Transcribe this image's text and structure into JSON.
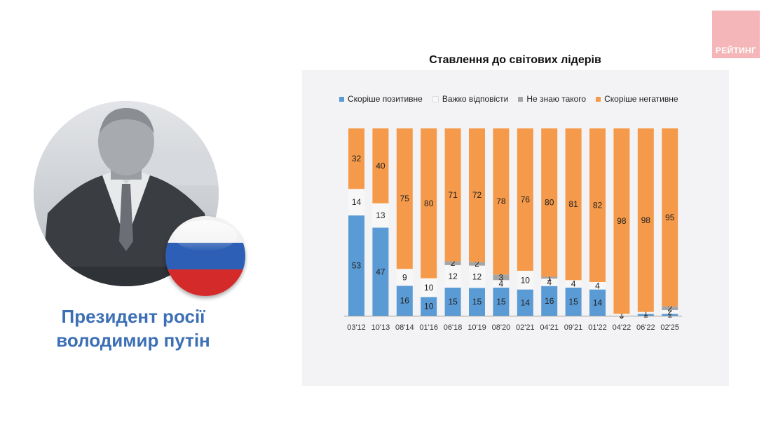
{
  "logo": {
    "text": "РЕЙТИНГ"
  },
  "person": {
    "line1": "Президент росії",
    "line2": "володимир путін"
  },
  "chart_data": {
    "type": "bar",
    "stacked": true,
    "normalized": true,
    "title": "Ставлення до світових лідерів",
    "xlabel": "",
    "ylabel": "",
    "legend_position": "top",
    "grid": false,
    "categories": [
      "03'12",
      "10'13",
      "08'14",
      "01'16",
      "06'18",
      "10'19",
      "08'20",
      "02'21",
      "04'21",
      "09'21",
      "01'22",
      "04'22",
      "06'22",
      "02'25"
    ],
    "series": [
      {
        "name": "Скоріше позитивне",
        "color": "#5b9bd5",
        "values": [
          53,
          47,
          16,
          10,
          15,
          15,
          15,
          14,
          16,
          15,
          14,
          0,
          1,
          1
        ],
        "labels": [
          "53",
          "47",
          "16",
          "10",
          "15",
          "15",
          "15",
          "14",
          "16",
          "15",
          "14",
          "0",
          "1",
          "1"
        ]
      },
      {
        "name": "Важко відповісти",
        "color": "#f7f7f7",
        "values": [
          14,
          13,
          9,
          10,
          12,
          12,
          4,
          10,
          4,
          4,
          4,
          1,
          1,
          2
        ],
        "labels": [
          "14",
          "13",
          "9",
          "10",
          "12",
          "12",
          "4",
          "10",
          "4",
          "4",
          "4",
          "1",
          "1",
          "2"
        ]
      },
      {
        "name": "Не знаю такого",
        "color": "#a5a5a5",
        "values": [
          0,
          0,
          0,
          0,
          2,
          2,
          3,
          0,
          1,
          0,
          0,
          0,
          0,
          2
        ],
        "labels": [
          "",
          "",
          "",
          "",
          "2",
          "2",
          "3",
          "",
          "1",
          "",
          "",
          "",
          "",
          "2"
        ]
      },
      {
        "name": "Скоріше негативне",
        "color": "#f59a4a",
        "values": [
          32,
          40,
          75,
          80,
          71,
          72,
          78,
          76,
          80,
          81,
          82,
          98,
          98,
          95
        ],
        "labels": [
          "32",
          "40",
          "75",
          "80",
          "71",
          "72",
          "78",
          "76",
          "80",
          "81",
          "82",
          "98",
          "98",
          "95"
        ]
      }
    ]
  }
}
